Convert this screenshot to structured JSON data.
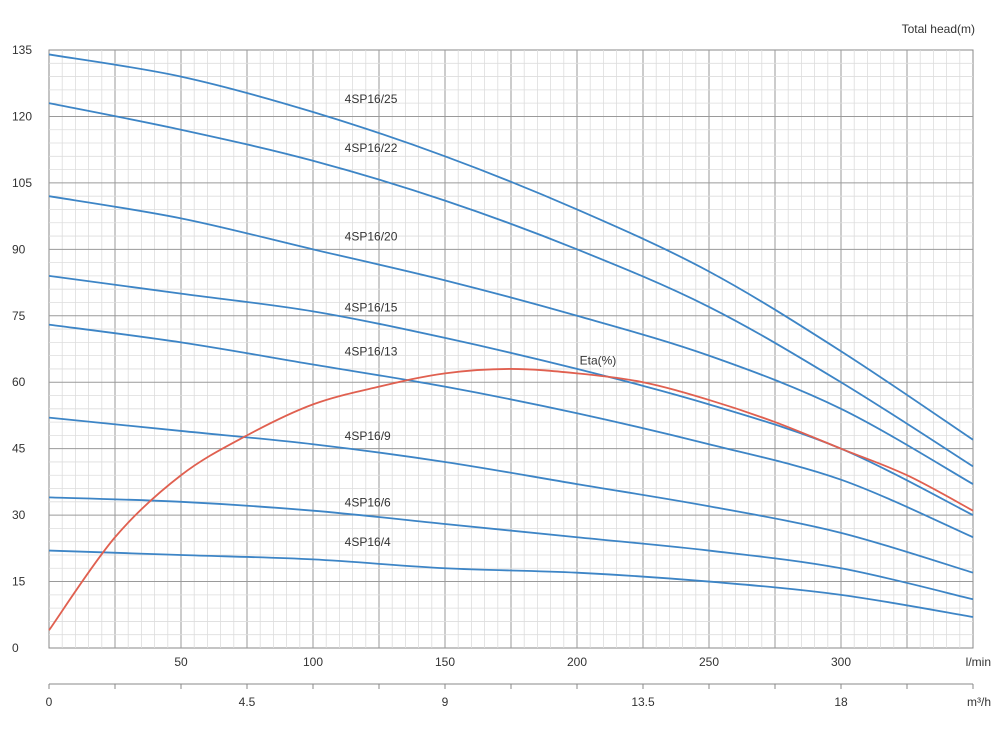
{
  "chart_data": {
    "type": "line",
    "y_axis_label": "Total head(m)",
    "x_axis_label_top": "l/min",
    "x_axis_label_bottom": "m³/h",
    "xlim_lmin": [
      0,
      350
    ],
    "ylim": [
      0,
      135
    ],
    "grid": true,
    "y_ticks": [
      "0",
      "15",
      "30",
      "45",
      "60",
      "75",
      "90",
      "105",
      "120",
      "135"
    ],
    "x_ticks_lmin": [
      "50",
      "100",
      "150",
      "200",
      "250",
      "300"
    ],
    "x_ticks_m3h": [
      "0",
      "4.5",
      "9",
      "13.5",
      "18"
    ],
    "series": [
      {
        "name": "4SP16/25",
        "color": "#3d85c6",
        "x": [
          0,
          50,
          100,
          150,
          200,
          250,
          300,
          350
        ],
        "y": [
          134,
          129,
          121,
          111,
          99,
          85,
          67,
          47
        ]
      },
      {
        "name": "4SP16/22",
        "color": "#3d85c6",
        "x": [
          0,
          50,
          100,
          150,
          200,
          250,
          300,
          350
        ],
        "y": [
          123,
          117,
          110,
          101,
          90,
          77,
          60,
          41
        ]
      },
      {
        "name": "4SP16/20",
        "color": "#3d85c6",
        "x": [
          0,
          50,
          100,
          150,
          200,
          250,
          300,
          350
        ],
        "y": [
          102,
          97,
          90,
          83,
          75,
          66,
          54,
          37
        ]
      },
      {
        "name": "4SP16/15",
        "color": "#3d85c6",
        "x": [
          0,
          50,
          100,
          150,
          200,
          250,
          300,
          350
        ],
        "y": [
          84,
          80,
          76,
          70,
          63,
          55,
          45,
          30
        ]
      },
      {
        "name": "4SP16/13",
        "color": "#3d85c6",
        "x": [
          0,
          50,
          100,
          150,
          200,
          250,
          300,
          350
        ],
        "y": [
          73,
          69,
          64,
          59,
          53,
          46,
          38,
          25
        ]
      },
      {
        "name": "4SP16/9",
        "color": "#3d85c6",
        "x": [
          0,
          50,
          100,
          150,
          200,
          250,
          300,
          350
        ],
        "y": [
          52,
          49,
          46,
          42,
          37,
          32,
          26,
          17
        ]
      },
      {
        "name": "4SP16/6",
        "color": "#3d85c6",
        "x": [
          0,
          50,
          100,
          150,
          200,
          250,
          300,
          350
        ],
        "y": [
          34,
          33,
          31,
          28,
          25,
          22,
          18,
          11
        ]
      },
      {
        "name": "4SP16/4",
        "color": "#3d85c6",
        "x": [
          0,
          50,
          100,
          150,
          200,
          250,
          300,
          350
        ],
        "y": [
          22,
          21,
          20,
          18,
          17,
          15,
          12,
          7
        ]
      },
      {
        "name": "Eta(%)",
        "color": "#e06050",
        "x": [
          0,
          25,
          50,
          75,
          100,
          125,
          150,
          175,
          200,
          225,
          250,
          275,
          300,
          325,
          350
        ],
        "y": [
          4,
          25,
          39,
          48,
          55,
          59,
          62,
          63,
          62,
          60,
          56,
          51,
          45,
          39,
          31
        ]
      }
    ],
    "curve_labels": [
      {
        "text": "4SP16/25",
        "x": 112,
        "y": 123
      },
      {
        "text": "4SP16/22",
        "x": 112,
        "y": 112
      },
      {
        "text": "4SP16/20",
        "x": 112,
        "y": 92
      },
      {
        "text": "4SP16/15",
        "x": 112,
        "y": 76
      },
      {
        "text": "4SP16/13",
        "x": 112,
        "y": 66
      },
      {
        "text": "4SP16/9",
        "x": 112,
        "y": 47
      },
      {
        "text": "4SP16/6",
        "x": 112,
        "y": 32
      },
      {
        "text": "4SP16/4",
        "x": 112,
        "y": 23
      },
      {
        "text": "Eta(%)",
        "x": 201,
        "y": 64
      }
    ]
  }
}
